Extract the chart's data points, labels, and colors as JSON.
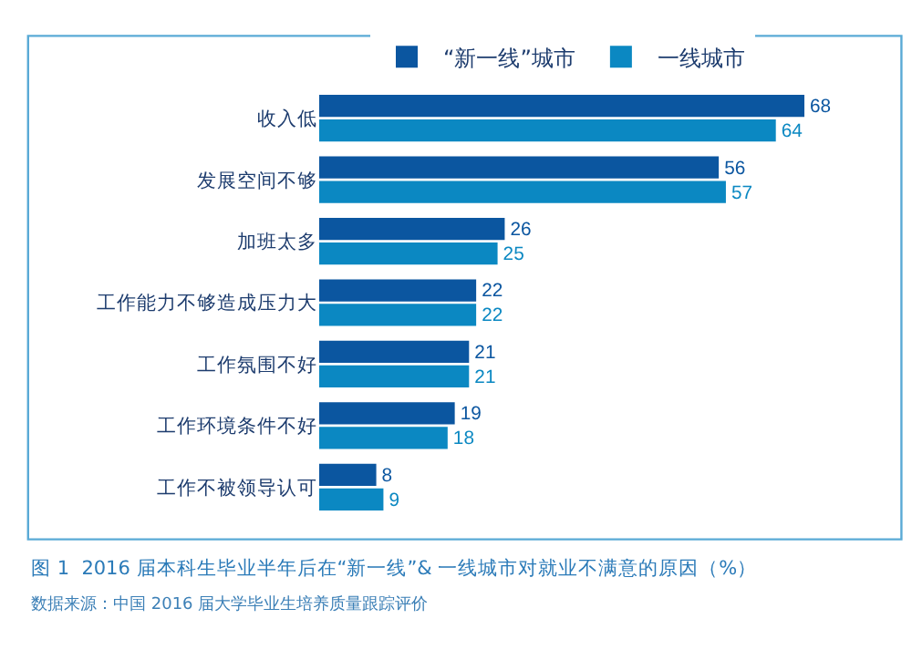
{
  "chart_data": {
    "type": "bar",
    "orientation": "horizontal",
    "categories": [
      "收入低",
      "发展空间不够",
      "加班太多",
      "工作能力不够造成压力大",
      "工作氛围不好",
      "工作环境条件不好",
      "工作不被领导认可"
    ],
    "series": [
      {
        "name": "“新一线”城市",
        "color": "#0b56a0",
        "values": [
          68,
          56,
          26,
          22,
          21,
          19,
          8
        ]
      },
      {
        "name": "一线城市",
        "color": "#0b88c2",
        "values": [
          64,
          57,
          25,
          22,
          21,
          18,
          9
        ]
      }
    ],
    "data_labels": true,
    "legend": "top",
    "grid": false,
    "annotations": [
      "图 1  2016 届本科生毕业半年后在“新一线”& 一线城市对就业不满意的原因（%）",
      "数据来源：中国 2016 届大学毕业生培养质量跟踪评价"
    ]
  }
}
